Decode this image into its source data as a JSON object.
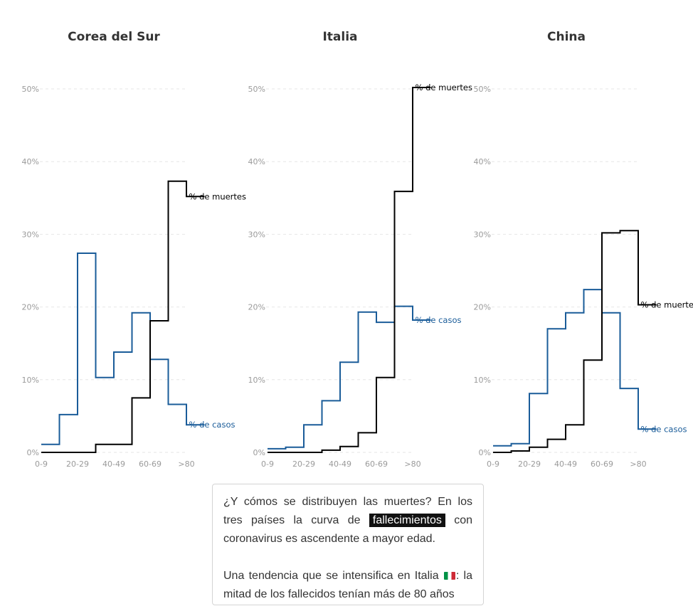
{
  "chart_data": [
    {
      "type": "line",
      "title": "Corea del Sur",
      "step": true,
      "categories": [
        "0-9",
        "10-19",
        "20-29",
        "30-39",
        "40-49",
        "50-59",
        "60-69",
        "70-79",
        ">80"
      ],
      "tick_labels": [
        "0-9",
        "20-29",
        "40-49",
        "60-69",
        ">80"
      ],
      "yticks": [
        "0%",
        "10%",
        "20%",
        "30%",
        "40%",
        "50%"
      ],
      "ylim": [
        0,
        50
      ],
      "grid": true,
      "series": [
        {
          "name": "% de casos",
          "color": "#1a5c99",
          "values": [
            1.1,
            5.2,
            27.4,
            10.3,
            13.8,
            19.2,
            12.8,
            6.6,
            3.8
          ]
        },
        {
          "name": "% de muertes",
          "color": "#000000",
          "values": [
            0,
            0,
            0,
            1.1,
            1.1,
            7.5,
            18.1,
            37.3,
            35.2
          ]
        }
      ]
    },
    {
      "type": "line",
      "title": "Italia",
      "step": true,
      "categories": [
        "0-9",
        "10-19",
        "20-29",
        "30-39",
        "40-49",
        "50-59",
        "60-69",
        "70-79",
        ">80"
      ],
      "tick_labels": [
        "0-9",
        "20-29",
        "40-49",
        "60-69",
        ">80"
      ],
      "yticks": [
        "0%",
        "10%",
        "20%",
        "30%",
        "40%",
        "50%"
      ],
      "ylim": [
        0,
        50
      ],
      "grid": true,
      "series": [
        {
          "name": "% de casos",
          "color": "#1a5c99",
          "values": [
            0.5,
            0.7,
            3.8,
            7.1,
            12.4,
            19.3,
            17.9,
            20.1,
            18.2
          ]
        },
        {
          "name": "% de muertes",
          "color": "#000000",
          "values": [
            0,
            0,
            0,
            0.3,
            0.8,
            2.7,
            10.3,
            35.9,
            50.2
          ]
        }
      ]
    },
    {
      "type": "line",
      "title": "China",
      "step": true,
      "categories": [
        "0-9",
        "10-19",
        "20-29",
        "30-39",
        "40-49",
        "50-59",
        "60-69",
        "70-79",
        ">80"
      ],
      "tick_labels": [
        "0-9",
        "20-29",
        "40-49",
        "60-69",
        ">80"
      ],
      "yticks": [
        "0%",
        "10%",
        "20%",
        "30%",
        "40%",
        "50%"
      ],
      "ylim": [
        0,
        50
      ],
      "grid": true,
      "series": [
        {
          "name": "% de casos",
          "color": "#1a5c99",
          "values": [
            0.9,
            1.2,
            8.1,
            17.0,
            19.2,
            22.4,
            19.2,
            8.8,
            3.2
          ]
        },
        {
          "name": "% de muertes",
          "color": "#000000",
          "values": [
            0,
            0.2,
            0.7,
            1.8,
            3.8,
            12.7,
            30.2,
            30.5,
            20.3
          ]
        }
      ]
    }
  ],
  "panel": {
    "p1_before": "¿Y cómos se distribuyen las muertes? En los tres países la curva de",
    "p1_highlight": "fallecimientos",
    "p1_after": "con coronavirus es ascendente a mayor edad.",
    "p2_before": "Una tendencia que se intensifica en Italia",
    "p2_after": ": la mitad de los fallecidos tenían más de 80 años"
  }
}
